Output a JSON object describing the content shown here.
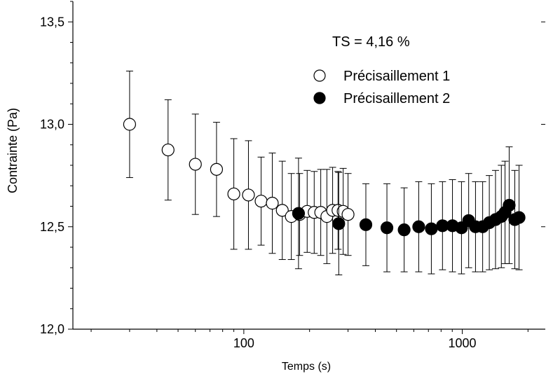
{
  "chart_data": {
    "type": "scatter",
    "annotation": "TS = 4,16 %",
    "xlabel": "Temps (s)",
    "ylabel": "Contrainte (Pa)",
    "x_scale": "log",
    "xlim": [
      16.5,
      2400
    ],
    "ylim": [
      12.0,
      13.6
    ],
    "x_ticks": [
      100,
      1000
    ],
    "x_tick_labels": [
      "100",
      "1000"
    ],
    "y_ticks": [
      12.0,
      12.5,
      13.0,
      13.5
    ],
    "y_tick_labels": [
      "12,0",
      "12,5",
      "13,0",
      "13,5"
    ],
    "legend_position": "top-right",
    "series": [
      {
        "name": "Précisaillement 1",
        "marker": "open-circle",
        "color": "#000000",
        "points": [
          {
            "x": 30,
            "y": 13.0,
            "err": 0.26
          },
          {
            "x": 45,
            "y": 12.875,
            "err": 0.245
          },
          {
            "x": 60,
            "y": 12.805,
            "err": 0.245
          },
          {
            "x": 75,
            "y": 12.78,
            "err": 0.23
          },
          {
            "x": 90,
            "y": 12.66,
            "err": 0.27
          },
          {
            "x": 105,
            "y": 12.655,
            "err": 0.265
          },
          {
            "x": 120,
            "y": 12.625,
            "err": 0.215
          },
          {
            "x": 135,
            "y": 12.615,
            "err": 0.245
          },
          {
            "x": 150,
            "y": 12.58,
            "err": 0.24
          },
          {
            "x": 165,
            "y": 12.55,
            "err": 0.21
          },
          {
            "x": 180,
            "y": 12.56,
            "err": 0.2
          },
          {
            "x": 195,
            "y": 12.575,
            "err": 0.2
          },
          {
            "x": 210,
            "y": 12.57,
            "err": 0.2
          },
          {
            "x": 225,
            "y": 12.57,
            "err": 0.21
          },
          {
            "x": 240,
            "y": 12.55,
            "err": 0.23
          },
          {
            "x": 255,
            "y": 12.58,
            "err": 0.21
          },
          {
            "x": 270,
            "y": 12.58,
            "err": 0.19
          },
          {
            "x": 285,
            "y": 12.575,
            "err": 0.21
          },
          {
            "x": 300,
            "y": 12.56,
            "err": 0.2
          }
        ]
      },
      {
        "name": "Précisaillement 2",
        "marker": "filled-circle",
        "color": "#000000",
        "points": [
          {
            "x": 178,
            "y": 12.565,
            "err": 0.27
          },
          {
            "x": 272,
            "y": 12.515,
            "err": 0.25
          },
          {
            "x": 362,
            "y": 12.51,
            "err": 0.2
          },
          {
            "x": 452,
            "y": 12.495,
            "err": 0.215
          },
          {
            "x": 542,
            "y": 12.485,
            "err": 0.205
          },
          {
            "x": 632,
            "y": 12.5,
            "err": 0.22
          },
          {
            "x": 722,
            "y": 12.49,
            "err": 0.22
          },
          {
            "x": 812,
            "y": 12.505,
            "err": 0.215
          },
          {
            "x": 902,
            "y": 12.505,
            "err": 0.225
          },
          {
            "x": 992,
            "y": 12.495,
            "err": 0.225
          },
          {
            "x": 1070,
            "y": 12.53,
            "err": 0.23
          },
          {
            "x": 1150,
            "y": 12.5,
            "err": 0.22
          },
          {
            "x": 1240,
            "y": 12.5,
            "err": 0.22
          },
          {
            "x": 1330,
            "y": 12.52,
            "err": 0.23
          },
          {
            "x": 1420,
            "y": 12.535,
            "err": 0.24
          },
          {
            "x": 1510,
            "y": 12.55,
            "err": 0.25
          },
          {
            "x": 1570,
            "y": 12.57,
            "err": 0.25
          },
          {
            "x": 1640,
            "y": 12.605,
            "err": 0.285
          },
          {
            "x": 1740,
            "y": 12.535,
            "err": 0.24
          },
          {
            "x": 1820,
            "y": 12.545,
            "err": 0.255
          }
        ]
      }
    ]
  }
}
